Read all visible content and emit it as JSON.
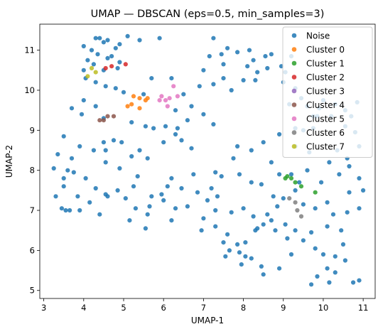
{
  "chart_data": {
    "type": "scatter",
    "title": "UMAP — DBSCAN (eps=0.5, min_samples=3)",
    "xlabel": "UMAP-1",
    "ylabel": "UMAP-2",
    "xlim": [
      2.9,
      11.3
    ],
    "ylim": [
      4.8,
      11.65
    ],
    "xticks": [
      "3",
      "4",
      "5",
      "6",
      "7",
      "8",
      "9",
      "10",
      "11"
    ],
    "yticks": [
      "5",
      "6",
      "7",
      "8",
      "9",
      "10",
      "11"
    ],
    "grid": false,
    "legend_position": "top-right",
    "series": [
      {
        "name": "Noise",
        "color": "#1f77b4",
        "points": [
          [
            4.3,
            11.3
          ],
          [
            4.4,
            11.3
          ],
          [
            4.5,
            11.2
          ],
          [
            4.6,
            11.25
          ],
          [
            4.8,
            11.05
          ],
          [
            4.9,
            11.15
          ],
          [
            5.1,
            11.35
          ],
          [
            5.4,
            11.25
          ],
          [
            5.9,
            11.3
          ],
          [
            4.0,
            11.1
          ],
          [
            4.2,
            11.0
          ],
          [
            4.35,
            10.9
          ],
          [
            4.6,
            10.8
          ],
          [
            4.7,
            10.85
          ],
          [
            4.1,
            10.75
          ],
          [
            4.25,
            10.65
          ],
          [
            4.9,
            10.7
          ],
          [
            4.5,
            10.5
          ],
          [
            4.85,
            10.55
          ],
          [
            4.0,
            10.5
          ],
          [
            4.05,
            10.3
          ],
          [
            4.3,
            10.2
          ],
          [
            4.55,
            10.1
          ],
          [
            4.8,
            10.05
          ],
          [
            5.0,
            9.95
          ],
          [
            5.5,
            9.9
          ],
          [
            5.7,
            10.3
          ],
          [
            6.2,
            10.3
          ],
          [
            5.2,
            9.2
          ],
          [
            5.55,
            9.1
          ],
          [
            5.75,
            9.05
          ],
          [
            6.05,
            9.1
          ],
          [
            6.3,
            9.5
          ],
          [
            6.5,
            9.9
          ],
          [
            6.7,
            9.6
          ],
          [
            6.9,
            10.1
          ],
          [
            7.0,
            9.4
          ],
          [
            7.25,
            9.15
          ],
          [
            7.0,
            10.5
          ],
          [
            6.6,
            9.25
          ],
          [
            4.0,
            9.75
          ],
          [
            4.3,
            9.6
          ],
          [
            4.5,
            9.3
          ],
          [
            3.7,
            9.55
          ],
          [
            3.95,
            9.4
          ],
          [
            3.5,
            8.85
          ],
          [
            3.35,
            8.4
          ],
          [
            3.7,
            8.3
          ],
          [
            3.9,
            8.6
          ],
          [
            4.25,
            8.5
          ],
          [
            4.5,
            8.7
          ],
          [
            4.75,
            8.75
          ],
          [
            4.55,
            8.2
          ],
          [
            4.9,
            8.05
          ],
          [
            5.2,
            8.35
          ],
          [
            5.4,
            8.5
          ],
          [
            5.6,
            8.3
          ],
          [
            5.35,
            7.85
          ],
          [
            5.25,
            7.6
          ],
          [
            3.6,
            8.0
          ],
          [
            3.75,
            7.95
          ],
          [
            4.05,
            7.8
          ],
          [
            4.3,
            7.55
          ],
          [
            3.5,
            7.6
          ],
          [
            3.85,
            7.35
          ],
          [
            4.15,
            7.2
          ],
          [
            4.55,
            7.4
          ],
          [
            4.85,
            7.5
          ],
          [
            5.05,
            7.3
          ],
          [
            5.3,
            7.05
          ],
          [
            5.6,
            6.9
          ],
          [
            5.15,
            6.75
          ],
          [
            3.45,
            7.05
          ],
          [
            3.55,
            7.0
          ],
          [
            3.65,
            7.0
          ],
          [
            3.3,
            7.35
          ],
          [
            3.25,
            8.05
          ],
          [
            4.4,
            6.9
          ],
          [
            5.65,
            7.1
          ],
          [
            5.7,
            7.35
          ],
          [
            5.95,
            7.4
          ],
          [
            6.1,
            7.6
          ],
          [
            6.2,
            7.8
          ],
          [
            6.45,
            7.55
          ],
          [
            6.85,
            7.45
          ],
          [
            7.1,
            7.25
          ],
          [
            7.2,
            7.55
          ],
          [
            7.45,
            7.85
          ],
          [
            6.3,
            7.05
          ],
          [
            6.6,
            7.1
          ],
          [
            7.0,
            6.8
          ],
          [
            7.3,
            6.6
          ],
          [
            7.6,
            6.4
          ],
          [
            7.85,
            6.15
          ],
          [
            7.9,
            5.95
          ],
          [
            8.2,
            5.8
          ],
          [
            8.45,
            5.6
          ],
          [
            8.5,
            5.4
          ],
          [
            7.65,
            6.0
          ],
          [
            7.55,
            5.85
          ],
          [
            8.05,
            5.85
          ],
          [
            7.95,
            5.65
          ],
          [
            7.5,
            6.2
          ],
          [
            7.3,
            7.0
          ],
          [
            7.7,
            6.95
          ],
          [
            8.0,
            7.05
          ],
          [
            8.25,
            6.85
          ],
          [
            8.5,
            6.65
          ],
          [
            8.6,
            6.9
          ],
          [
            8.7,
            6.75
          ],
          [
            8.8,
            6.5
          ],
          [
            9.1,
            6.3
          ],
          [
            9.3,
            6.5
          ],
          [
            9.5,
            6.25
          ],
          [
            9.8,
            6.05
          ],
          [
            10.0,
            5.9
          ],
          [
            10.3,
            5.85
          ],
          [
            10.1,
            5.55
          ],
          [
            10.3,
            5.45
          ],
          [
            10.15,
            5.2
          ],
          [
            10.55,
            5.75
          ],
          [
            10.5,
            6.15
          ],
          [
            10.9,
            5.25
          ],
          [
            10.75,
            5.2
          ],
          [
            9.7,
            5.15
          ],
          [
            9.85,
            5.35
          ],
          [
            8.35,
            6.55
          ],
          [
            8.85,
            7.1
          ],
          [
            9.0,
            7.3
          ],
          [
            9.3,
            7.5
          ],
          [
            9.5,
            7.15
          ],
          [
            9.8,
            7.05
          ],
          [
            10.1,
            7.2
          ],
          [
            10.25,
            6.9
          ],
          [
            10.6,
            6.95
          ],
          [
            10.9,
            7.05
          ],
          [
            11.0,
            7.5
          ],
          [
            10.9,
            7.8
          ],
          [
            10.65,
            8.1
          ],
          [
            10.4,
            7.9
          ],
          [
            10.15,
            8.2
          ],
          [
            9.95,
            7.7
          ],
          [
            9.6,
            8.0
          ],
          [
            9.4,
            7.7
          ],
          [
            9.2,
            7.9
          ],
          [
            8.9,
            7.9
          ],
          [
            8.7,
            8.2
          ],
          [
            8.45,
            7.65
          ],
          [
            8.2,
            7.7
          ],
          [
            7.9,
            7.9
          ],
          [
            7.75,
            8.3
          ],
          [
            7.85,
            8.6
          ],
          [
            8.2,
            8.5
          ],
          [
            8.5,
            8.7
          ],
          [
            8.9,
            8.9
          ],
          [
            9.3,
            8.6
          ],
          [
            9.5,
            9.0
          ],
          [
            9.75,
            9.05
          ],
          [
            9.85,
            9.35
          ],
          [
            10.0,
            9.75
          ],
          [
            10.3,
            9.65
          ],
          [
            10.55,
            9.5
          ],
          [
            10.7,
            9.35
          ],
          [
            10.2,
            9.35
          ],
          [
            10.35,
            8.5
          ],
          [
            10.6,
            8.3
          ],
          [
            10.9,
            8.6
          ],
          [
            9.3,
            9.05
          ],
          [
            9.9,
            9.55
          ],
          [
            7.15,
            10.85
          ],
          [
            7.25,
            11.3
          ],
          [
            7.45,
            10.9
          ],
          [
            7.6,
            11.05
          ],
          [
            7.5,
            10.65
          ],
          [
            7.85,
            10.95
          ],
          [
            8.15,
            11.0
          ],
          [
            8.25,
            10.75
          ],
          [
            8.35,
            10.45
          ],
          [
            8.55,
            10.85
          ],
          [
            8.7,
            10.9
          ],
          [
            8.6,
            10.55
          ],
          [
            8.95,
            10.6
          ],
          [
            9.2,
            10.85
          ],
          [
            9.0,
            10.2
          ],
          [
            9.3,
            10.05
          ],
          [
            9.45,
            9.8
          ],
          [
            9.6,
            9.6
          ],
          [
            9.75,
            9.35
          ],
          [
            8.0,
            10.25
          ],
          [
            7.7,
            10.0
          ],
          [
            7.5,
            10.3
          ],
          [
            8.1,
            10.6
          ],
          [
            9.05,
            10.45
          ],
          [
            8.3,
            10.25
          ],
          [
            10.85,
            9.7
          ],
          [
            9.15,
            9.65
          ],
          [
            7.25,
            10.15
          ],
          [
            6.0,
            8.7
          ],
          [
            6.3,
            8.9
          ],
          [
            6.45,
            8.75
          ],
          [
            6.7,
            8.55
          ],
          [
            6.35,
            9.05
          ],
          [
            4.95,
            8.7
          ],
          [
            3.5,
            7.8
          ],
          [
            4.55,
            8.5
          ],
          [
            3.9,
            7.0
          ],
          [
            4.6,
            7.35
          ],
          [
            5.55,
            6.55
          ],
          [
            6.2,
            6.75
          ],
          [
            6.95,
            6.5
          ],
          [
            6.0,
            7.25
          ],
          [
            8.3,
            6.5
          ],
          [
            9.05,
            6.65
          ],
          [
            9.7,
            6.45
          ],
          [
            10.45,
            6.5
          ],
          [
            9.2,
            5.9
          ],
          [
            8.9,
            5.55
          ],
          [
            10.65,
            7.45
          ],
          [
            10.1,
            6.6
          ],
          [
            8.05,
            6.2
          ],
          [
            8.75,
            7.35
          ],
          [
            7.35,
            7.35
          ],
          [
            6.75,
            7.9
          ],
          [
            7.3,
            7.95
          ],
          [
            9.65,
            8.45
          ],
          [
            10.8,
            8.95
          ],
          [
            10.55,
            9.1
          ]
        ]
      },
      {
        "name": "Cluster 0",
        "color": "#ff7f0e",
        "points": [
          [
            5.25,
            9.85
          ],
          [
            5.4,
            9.8
          ],
          [
            5.55,
            9.75
          ],
          [
            5.6,
            9.8
          ],
          [
            5.2,
            9.65
          ],
          [
            5.4,
            9.55
          ],
          [
            5.1,
            9.6
          ]
        ]
      },
      {
        "name": "Cluster 1",
        "color": "#2ca02c",
        "points": [
          [
            9.1,
            7.85
          ],
          [
            9.2,
            7.8
          ],
          [
            9.3,
            7.7
          ],
          [
            9.45,
            7.6
          ],
          [
            9.8,
            7.45
          ],
          [
            9.05,
            7.8
          ]
        ]
      },
      {
        "name": "Cluster 2",
        "color": "#d62728",
        "points": [
          [
            4.55,
            10.55
          ],
          [
            4.7,
            10.6
          ],
          [
            5.05,
            10.65
          ]
        ]
      },
      {
        "name": "Cluster 3",
        "color": "#9467bd",
        "points": []
      },
      {
        "name": "Cluster 4",
        "color": "#8c564b",
        "points": [
          [
            4.4,
            9.25
          ],
          [
            4.5,
            9.25
          ],
          [
            4.6,
            9.35
          ],
          [
            4.75,
            9.35
          ]
        ]
      },
      {
        "name": "Cluster 5",
        "color": "#e377c2",
        "points": [
          [
            5.95,
            9.85
          ],
          [
            6.05,
            9.75
          ],
          [
            6.1,
            9.6
          ],
          [
            6.15,
            9.8
          ],
          [
            6.25,
            10.1
          ],
          [
            6.35,
            9.85
          ],
          [
            5.9,
            9.75
          ]
        ]
      },
      {
        "name": "Cluster 6",
        "color": "#7f7f7f",
        "points": [
          [
            9.3,
            7.2
          ],
          [
            9.35,
            7.0
          ],
          [
            9.45,
            6.85
          ],
          [
            9.15,
            7.3
          ]
        ]
      },
      {
        "name": "Cluster 7",
        "color": "#bcbd22",
        "points": [
          [
            4.1,
            10.35
          ],
          [
            4.2,
            10.55
          ],
          [
            4.3,
            10.45
          ]
        ]
      }
    ]
  }
}
